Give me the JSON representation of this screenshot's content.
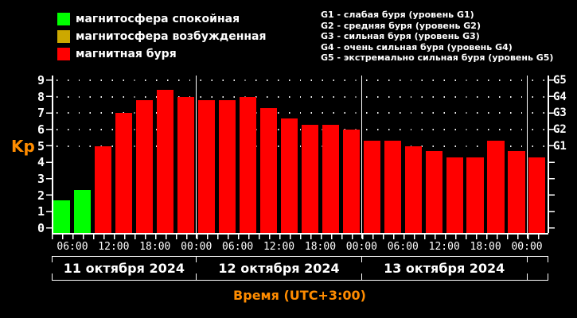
{
  "colors": {
    "background": "#000000",
    "text": "#ffffff",
    "accent_orange": "#ff8c00",
    "bar_green": "#00ff00",
    "bar_red": "#ff0000",
    "legend_yellow": "#cca800"
  },
  "legend": {
    "items": [
      {
        "label": "магнитосфера спокойная",
        "color": "#00ff00"
      },
      {
        "label": "магнитосфера возбужденная",
        "color": "#cca800"
      },
      {
        "label": "магнитная буря",
        "color": "#ff0000"
      }
    ]
  },
  "g_scale": {
    "lines": [
      "G1 - слабая буря (уровень G1)",
      "G2 - средняя буря (уровень G2)",
      "G3 - сильная буря (уровень G3)",
      "G4 - очень сильная буря (уровень G4)",
      "G5 - экстремально сильная буря (уровень G5)"
    ]
  },
  "axes": {
    "y_label": "Kp",
    "y_ticks": [
      0,
      1,
      2,
      3,
      4,
      5,
      6,
      7,
      8,
      9
    ],
    "right_labels": [
      {
        "text": "G1",
        "kp": 5
      },
      {
        "text": "G2",
        "kp": 6
      },
      {
        "text": "G3",
        "kp": 7
      },
      {
        "text": "G4",
        "kp": 8
      },
      {
        "text": "G5",
        "kp": 9
      }
    ],
    "x_caption": "Время (UTC+3:00)"
  },
  "chart_data": {
    "type": "bar",
    "ylabel": "Kp",
    "ylim": [
      0,
      9
    ],
    "bar_interval_hours": 3,
    "grid_dot_rows_kp": [
      5,
      6,
      7,
      8,
      9
    ],
    "time_tick_labels": [
      "06:00",
      "12:00",
      "18:00",
      "00:00",
      "06:00",
      "12:00",
      "18:00",
      "00:00",
      "06:00",
      "12:00",
      "18:00",
      "00:00"
    ],
    "days": [
      {
        "date": "11 октября 2024",
        "start_time": "03:00",
        "bars": [
          {
            "v": 1.7,
            "color": "#00ff00"
          },
          {
            "v": 2.3,
            "color": "#00ff00"
          },
          {
            "v": 5.0,
            "color": "#ff0000"
          },
          {
            "v": 7.0,
            "color": "#ff0000"
          },
          {
            "v": 7.8,
            "color": "#ff0000"
          },
          {
            "v": 8.4,
            "color": "#ff0000"
          },
          {
            "v": 8.0,
            "color": "#ff0000"
          }
        ]
      },
      {
        "date": "12 октября 2024",
        "start_time": "00:00",
        "bars": [
          {
            "v": 7.8,
            "color": "#ff0000"
          },
          {
            "v": 7.8,
            "color": "#ff0000"
          },
          {
            "v": 8.0,
            "color": "#ff0000"
          },
          {
            "v": 7.3,
            "color": "#ff0000"
          },
          {
            "v": 6.7,
            "color": "#ff0000"
          },
          {
            "v": 6.3,
            "color": "#ff0000"
          },
          {
            "v": 6.3,
            "color": "#ff0000"
          },
          {
            "v": 6.0,
            "color": "#ff0000"
          }
        ]
      },
      {
        "date": "13 октября 2024",
        "start_time": "00:00",
        "bars": [
          {
            "v": 5.3,
            "color": "#ff0000"
          },
          {
            "v": 5.3,
            "color": "#ff0000"
          },
          {
            "v": 5.0,
            "color": "#ff0000"
          },
          {
            "v": 4.7,
            "color": "#ff0000"
          },
          {
            "v": 4.3,
            "color": "#ff0000"
          },
          {
            "v": 4.3,
            "color": "#ff0000"
          },
          {
            "v": 5.3,
            "color": "#ff0000"
          },
          {
            "v": 4.7,
            "color": "#ff0000"
          }
        ]
      },
      {
        "date": "",
        "start_time": "00:00",
        "bars": [
          {
            "v": 4.3,
            "color": "#ff0000"
          }
        ]
      }
    ]
  }
}
